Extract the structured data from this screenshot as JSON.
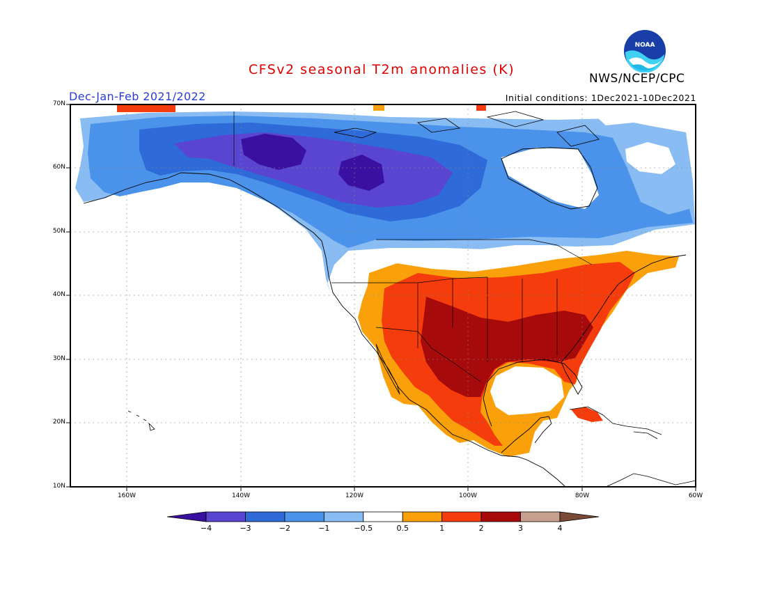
{
  "title": "CFSv2 seasonal T2m anomalies (K)",
  "agency": "NWS/NCEP/CPC",
  "season": "Dec-Jan-Feb 2021/2022",
  "initial_conditions": "Initial conditions: 1Dec2021-10Dec2021",
  "logo_text": "NOAA",
  "logo_icon": "noaa-logo-icon",
  "colors": {
    "title": "#e00000",
    "season": "#2a3cd6",
    "ocean": "#ffffff"
  },
  "map": {
    "lat_range": [
      10,
      70
    ],
    "lon_range": [
      -170,
      -60
    ],
    "lat_labels": [
      "70N",
      "60N",
      "50N",
      "40N",
      "30N",
      "20N",
      "10N"
    ],
    "lon_labels": [
      "160W",
      "140W",
      "120W",
      "100W",
      "80W",
      "60W"
    ]
  },
  "legend": {
    "tick_labels": [
      "-4",
      "-3",
      "-2",
      "-1",
      "-0.5",
      "0.5",
      "1",
      "2",
      "3",
      "4"
    ],
    "bins": [
      {
        "range": "< -4",
        "color": "#3a10a0"
      },
      {
        "range": "-4 to -3",
        "color": "#5a45d0"
      },
      {
        "range": "-3 to -2",
        "color": "#2e6ad8"
      },
      {
        "range": "-2 to -1",
        "color": "#4a92ea"
      },
      {
        "range": "-1 to -0.5",
        "color": "#88bcf2"
      },
      {
        "range": "-0.5 to 0.5",
        "color": "#ffffff"
      },
      {
        "range": "0.5 to 1",
        "color": "#f9a00a"
      },
      {
        "range": "1 to 2",
        "color": "#f53c0c"
      },
      {
        "range": "2 to 3",
        "color": "#a70a0a"
      },
      {
        "range": "3 to 4",
        "color": "#c8a090"
      },
      {
        "range": "> 4",
        "color": "#7a4a36"
      }
    ]
  }
}
